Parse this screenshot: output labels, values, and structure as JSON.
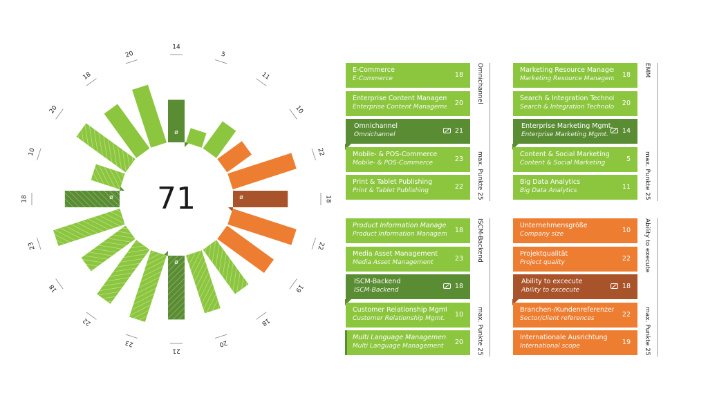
{
  "colors": {
    "green": "#8cc63f",
    "green_dark": "#5a8d33",
    "orange": "#ed7d31",
    "orange_dark": "#a9532a"
  },
  "chart_data": {
    "type": "radial-bar",
    "center_value": "71",
    "max_label": "max. Punkte 25",
    "segments": [
      {
        "label": "14",
        "value": 14,
        "style": "avg"
      },
      {
        "label": "5",
        "value": 5,
        "style": "plain"
      },
      {
        "label": "11",
        "value": 11,
        "style": "plain"
      },
      {
        "label": "10",
        "value": 10,
        "style": "plain-orange"
      },
      {
        "label": "22",
        "value": 22,
        "style": "plain-orange"
      },
      {
        "label": "18",
        "value": 18,
        "style": "avg-orange"
      },
      {
        "label": "22",
        "value": 22,
        "style": "plain-orange"
      },
      {
        "label": "19",
        "value": 19,
        "style": "plain-orange"
      },
      {
        "label": "18",
        "value": 18,
        "style": "hatch"
      },
      {
        "label": "20",
        "value": 20,
        "style": "hatch"
      },
      {
        "label": "21",
        "value": 21,
        "style": "avg-hatch"
      },
      {
        "label": "23",
        "value": 23,
        "style": "hatch"
      },
      {
        "label": "22",
        "value": 22,
        "style": "hatch"
      },
      {
        "label": "18",
        "value": 18,
        "style": "hatch"
      },
      {
        "label": "23",
        "value": 23,
        "style": "hatch"
      },
      {
        "label": "18",
        "value": 18,
        "style": "avg-hatch-dark"
      },
      {
        "label": "10",
        "value": 10,
        "style": "hatch"
      },
      {
        "label": "20",
        "value": 20,
        "style": "hatch"
      },
      {
        "label": "18",
        "value": 18,
        "style": "plain"
      },
      {
        "label": "20",
        "value": 20,
        "style": "plain"
      }
    ]
  },
  "panels": [
    {
      "title": "Omnichannel",
      "max": "max. Punkte 25",
      "cards": [
        {
          "main": "E-Commerce",
          "sub": "E-Commerce",
          "value": "18",
          "kind": "normal"
        },
        {
          "main": "Enterprise Content Management",
          "sub": "Enterprise Content Management",
          "value": "20",
          "kind": "normal"
        },
        {
          "main": "Omnichannel",
          "sub": "Omnichannel",
          "value": "21",
          "kind": "avg"
        },
        {
          "main": "Mobile- & POS-Commerce",
          "sub": "Mobile- & POS-Commerce",
          "value": "23",
          "kind": "normal"
        },
        {
          "main": "Print & Tablet Publishing",
          "sub": "Print & Tablet Publishing",
          "value": "22",
          "kind": "normal"
        }
      ]
    },
    {
      "title": "EMM",
      "max": "max. Punkte 25",
      "cards": [
        {
          "main": "Marketing Resource Management",
          "sub": "Marketing Resource Management",
          "value": "18",
          "kind": "normal"
        },
        {
          "main": "Search & Integration Technologies",
          "sub": "Search & Integration Technologies",
          "value": "20",
          "kind": "normal"
        },
        {
          "main": "Enterprise Marketing Mgmt.",
          "sub": "Enterprise Marketing Mgmt.",
          "value": "14",
          "kind": "avg"
        },
        {
          "main": "Content & Social Marketing",
          "sub": "Content & Social Marketing",
          "value": "5",
          "kind": "normal"
        },
        {
          "main": "Big Data Analytics",
          "sub": "Big Data Analytics",
          "value": "11",
          "kind": "normal"
        }
      ]
    },
    {
      "title": "ISCM-Backend",
      "max": "max. Punkte 25",
      "cards": [
        {
          "main": "Product Information Management",
          "sub": "Product Information Management",
          "value": "18",
          "kind": "italic"
        },
        {
          "main": "Media Asset Management",
          "sub": "Media Asset Management",
          "value": "23",
          "kind": "normal"
        },
        {
          "main": "ISCM-Backend",
          "sub": "ISCM-Backend",
          "value": "18",
          "kind": "avg"
        },
        {
          "main": "Customer Relationship Mgmt.",
          "sub": "Customer Relationship Mgmt.",
          "value": "10",
          "kind": "normal"
        },
        {
          "main": "Multi Language Management",
          "sub": "Multi Language Management",
          "value": "20",
          "kind": "italic-accent"
        }
      ]
    },
    {
      "title": "Ability to execute",
      "max": "max. Punkte 25",
      "cards": [
        {
          "main": "Unternehmensgröße",
          "sub": "Company size",
          "value": "10",
          "kind": "normal"
        },
        {
          "main": "Projektqualität",
          "sub": "Project quality",
          "value": "22",
          "kind": "normal"
        },
        {
          "main": "Ability to excecute",
          "sub": "Ability to excecute",
          "value": "18",
          "kind": "avg"
        },
        {
          "main": "Branchen-/Kundenreferenzen",
          "sub": "Sector/client references",
          "value": "22",
          "kind": "normal"
        },
        {
          "main": "Internationale Ausrichtung",
          "sub": "International scope",
          "value": "19",
          "kind": "normal"
        }
      ]
    }
  ]
}
